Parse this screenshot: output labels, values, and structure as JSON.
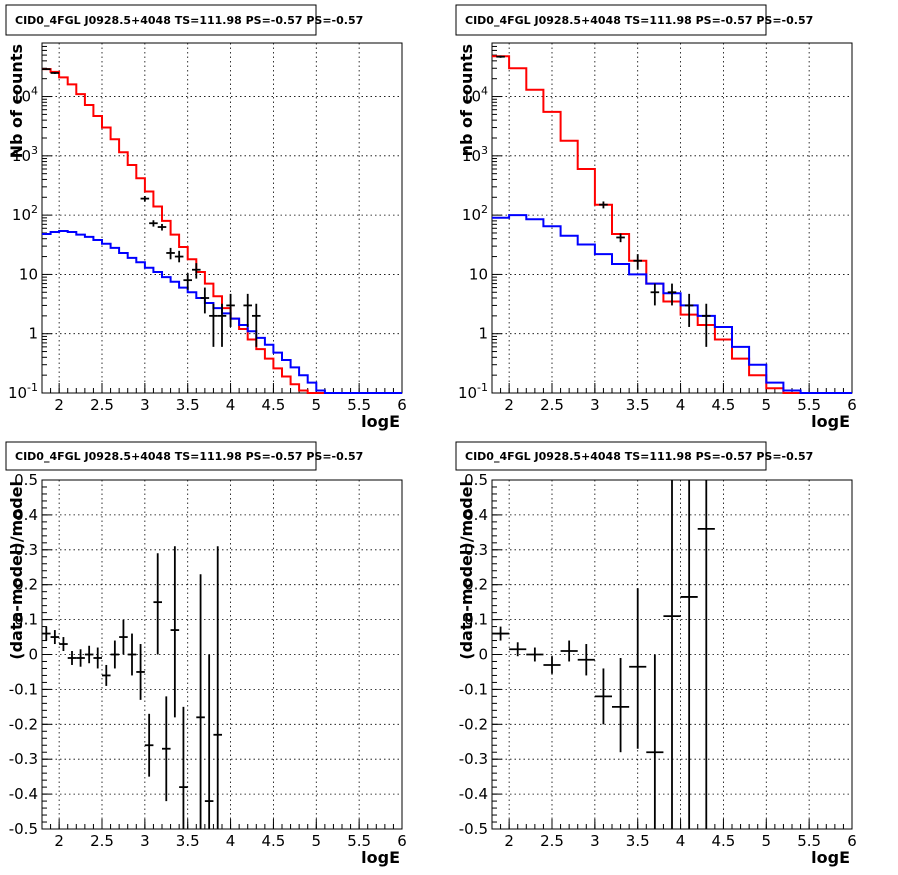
{
  "chart_data": [
    {
      "type": "step",
      "title": "CID0_4FGL J0928.5+4048 TS=111.98 PS=-0.57 PS=-0.57",
      "xlabel": "logE",
      "ylabel": "Nb of counts",
      "xlim": [
        1.8,
        6.0
      ],
      "ylim": [
        0.1,
        80000
      ],
      "log_y": true,
      "grid": true,
      "xticks": [
        "2",
        "2.5",
        "3",
        "3.5",
        "4",
        "4.5",
        "5",
        "5.5",
        "6"
      ],
      "yticks": [
        "10^-1",
        "1",
        "10",
        "10^2",
        "10^3",
        "10^4"
      ],
      "bin_edges": [
        1.8,
        1.9,
        2.0,
        2.1,
        2.2,
        2.3,
        2.4,
        2.5,
        2.6,
        2.7,
        2.8,
        2.9,
        3.0,
        3.1,
        3.2,
        3.3,
        3.4,
        3.5,
        3.6,
        3.7,
        3.8,
        3.9,
        4.0,
        4.1,
        4.2,
        4.3,
        4.4,
        4.5,
        4.6,
        4.7,
        4.8,
        4.9,
        5.0,
        5.1,
        5.2,
        5.3,
        5.4,
        5.5,
        5.6,
        5.7,
        5.8,
        5.9,
        6.0
      ],
      "series": [
        {
          "color": "#ff0000",
          "values": [
            29000,
            26000,
            21000,
            16000,
            11000,
            7200,
            4700,
            3000,
            1900,
            1150,
            700,
            420,
            250,
            140,
            80,
            47,
            29,
            18,
            11,
            7,
            4.3,
            2.7,
            1.8,
            1.2,
            0.8,
            0.55,
            0.38,
            0.26,
            0.19,
            0.14,
            0.11,
            0.1,
            0.1,
            0.1,
            0.1,
            0.1,
            0.1,
            0.1,
            0.1,
            0.1,
            0.1,
            0.1
          ]
        },
        {
          "color": "#0000ff",
          "values": [
            48,
            52,
            54,
            52,
            47,
            43,
            38,
            33,
            28,
            23,
            19,
            16,
            13,
            11,
            9,
            7.5,
            6,
            5,
            4,
            3.3,
            2.7,
            2.2,
            1.8,
            1.4,
            1.1,
            0.85,
            0.65,
            0.48,
            0.36,
            0.27,
            0.2,
            0.15,
            0.11,
            0.1,
            0.1,
            0.1,
            0.1,
            0.1,
            0.1,
            0.1,
            0.1,
            0.1
          ]
        }
      ],
      "points": [
        {
          "x": 1.85,
          "y": 29000,
          "lo": 28000,
          "hi": 30000
        },
        {
          "x": 1.95,
          "y": 25000,
          "lo": 24000,
          "hi": 26000
        },
        {
          "x": 3.0,
          "y": 190,
          "lo": 170,
          "hi": 210
        },
        {
          "x": 3.1,
          "y": 73,
          "lo": 64,
          "hi": 82
        },
        {
          "x": 3.2,
          "y": 63,
          "lo": 55,
          "hi": 71
        },
        {
          "x": 3.3,
          "y": 23,
          "lo": 18,
          "hi": 28
        },
        {
          "x": 3.4,
          "y": 20,
          "lo": 16,
          "hi": 25
        },
        {
          "x": 3.5,
          "y": 8,
          "lo": 5.5,
          "hi": 10.5
        },
        {
          "x": 3.6,
          "y": 12,
          "lo": 8.5,
          "hi": 15.5
        },
        {
          "x": 3.7,
          "y": 4,
          "lo": 2.2,
          "hi": 6
        },
        {
          "x": 3.8,
          "y": 2,
          "lo": 0.6,
          "hi": 3.2
        },
        {
          "x": 3.9,
          "y": 2,
          "lo": 0.6,
          "hi": 3.2
        },
        {
          "x": 4.0,
          "y": 3,
          "lo": 1.3,
          "hi": 4.7
        },
        {
          "x": 4.2,
          "y": 3,
          "lo": 1.3,
          "hi": 4.7
        },
        {
          "x": 4.3,
          "y": 2,
          "lo": 0.6,
          "hi": 3.2
        }
      ]
    },
    {
      "type": "step",
      "title": "CID0_4FGL J0928.5+4048 TS=111.98 PS=-0.57 PS=-0.57",
      "xlabel": "logE",
      "ylabel": "nb of counts",
      "xlim": [
        1.8,
        6.0
      ],
      "ylim": [
        0.1,
        80000
      ],
      "log_y": true,
      "grid": true,
      "xticks": [
        "2",
        "2.5",
        "3",
        "3.5",
        "4",
        "4.5",
        "5",
        "5.5",
        "6"
      ],
      "yticks": [
        "10^-1",
        "1",
        "10",
        "10^2",
        "10^3",
        "10^4"
      ],
      "bin_edges": [
        1.8,
        2.0,
        2.2,
        2.4,
        2.6,
        2.8,
        3.0,
        3.2,
        3.4,
        3.6,
        3.8,
        4.0,
        4.2,
        4.4,
        4.6,
        4.8,
        5.0,
        5.2,
        5.4,
        5.6,
        5.8,
        6.0
      ],
      "series": [
        {
          "color": "#ff0000",
          "values": [
            48000,
            30000,
            13000,
            5500,
            1800,
            600,
            150,
            48,
            17,
            7,
            3.5,
            2.1,
            1.4,
            0.8,
            0.38,
            0.2,
            0.12,
            0.1,
            0.1,
            0.1,
            0.1
          ]
        },
        {
          "color": "#0000ff",
          "values": [
            90,
            100,
            85,
            65,
            45,
            32,
            22,
            15,
            10,
            7,
            4.8,
            3,
            2,
            1.3,
            0.6,
            0.3,
            0.15,
            0.11,
            0.1,
            0.1,
            0.1
          ]
        }
      ],
      "points": [
        {
          "x": 1.9,
          "y": 47000,
          "lo": 45000,
          "hi": 49000
        },
        {
          "x": 3.1,
          "y": 150,
          "lo": 130,
          "hi": 170
        },
        {
          "x": 3.3,
          "y": 42,
          "lo": 35,
          "hi": 49
        },
        {
          "x": 3.5,
          "y": 17,
          "lo": 12,
          "hi": 22
        },
        {
          "x": 3.7,
          "y": 5,
          "lo": 3,
          "hi": 7
        },
        {
          "x": 3.9,
          "y": 5,
          "lo": 3,
          "hi": 7
        },
        {
          "x": 4.1,
          "y": 3,
          "lo": 1.3,
          "hi": 4.7
        },
        {
          "x": 4.3,
          "y": 2,
          "lo": 0.6,
          "hi": 3.2
        }
      ]
    },
    {
      "type": "scatter",
      "title": "CID0_4FGL J0928.5+4048 TS=111.98 PS=-0.57 PS=-0.57",
      "xlabel": "logE",
      "ylabel": "(data-model)/model",
      "xlim": [
        1.8,
        6.0
      ],
      "ylim": [
        -0.5,
        0.5
      ],
      "log_y": false,
      "grid": true,
      "xticks": [
        "2",
        "2.5",
        "3",
        "3.5",
        "4",
        "4.5",
        "5",
        "5.5",
        "6"
      ],
      "yticks": [
        "-0.5",
        "-0.4",
        "-0.3",
        "-0.2",
        "-0.1",
        "0",
        "0.1",
        "0.2",
        "0.3",
        "0.4",
        "0.5"
      ],
      "bin_halfwidth": 0.05,
      "points": [
        {
          "x": 1.85,
          "y": 0.06,
          "lo": 0.04,
          "hi": 0.08
        },
        {
          "x": 1.95,
          "y": 0.05,
          "lo": 0.03,
          "hi": 0.07
        },
        {
          "x": 2.05,
          "y": 0.03,
          "lo": 0.01,
          "hi": 0.05
        },
        {
          "x": 2.15,
          "y": -0.01,
          "lo": -0.03,
          "hi": 0.01
        },
        {
          "x": 2.25,
          "y": -0.01,
          "lo": -0.035,
          "hi": 0.015
        },
        {
          "x": 2.35,
          "y": 0.0,
          "lo": -0.025,
          "hi": 0.025
        },
        {
          "x": 2.45,
          "y": -0.01,
          "lo": -0.04,
          "hi": 0.02
        },
        {
          "x": 2.55,
          "y": -0.06,
          "lo": -0.09,
          "hi": -0.03
        },
        {
          "x": 2.65,
          "y": 0.0,
          "lo": -0.04,
          "hi": 0.04
        },
        {
          "x": 2.75,
          "y": 0.05,
          "lo": 0.0,
          "hi": 0.1
        },
        {
          "x": 2.85,
          "y": 0.0,
          "lo": -0.06,
          "hi": 0.06
        },
        {
          "x": 2.95,
          "y": -0.05,
          "lo": -0.13,
          "hi": 0.03
        },
        {
          "x": 3.05,
          "y": -0.26,
          "lo": -0.35,
          "hi": -0.17
        },
        {
          "x": 3.15,
          "y": 0.15,
          "lo": 0.0,
          "hi": 0.29
        },
        {
          "x": 3.25,
          "y": -0.27,
          "lo": -0.42,
          "hi": -0.12
        },
        {
          "x": 3.35,
          "y": 0.07,
          "lo": -0.18,
          "hi": 0.31
        },
        {
          "x": 3.45,
          "y": -0.38,
          "lo": -0.5,
          "hi": -0.15
        },
        {
          "x": 3.65,
          "y": -0.18,
          "lo": -0.5,
          "hi": 0.23
        },
        {
          "x": 3.75,
          "y": -0.42,
          "lo": -0.5,
          "hi": 0.0
        },
        {
          "x": 3.85,
          "y": -0.23,
          "lo": -0.5,
          "hi": 0.31
        }
      ]
    },
    {
      "type": "scatter",
      "title": "CID0_4FGL J0928.5+4048 TS=111.98 PS=-0.57 PS=-0.57",
      "xlabel": "logE",
      "ylabel": "(data-model)/model",
      "xlim": [
        1.8,
        6.0
      ],
      "ylim": [
        -0.5,
        0.5
      ],
      "log_y": false,
      "grid": true,
      "xticks": [
        "2",
        "2.5",
        "3",
        "3.5",
        "4",
        "4.5",
        "5",
        "5.5",
        "6"
      ],
      "yticks": [
        "-0.5",
        "-0.4",
        "-0.3",
        "-0.2",
        "-0.1",
        "0",
        "0.1",
        "0.2",
        "0.3",
        "0.4",
        "0.5"
      ],
      "bin_halfwidth": 0.1,
      "points": [
        {
          "x": 1.9,
          "y": 0.06,
          "lo": 0.04,
          "hi": 0.08
        },
        {
          "x": 2.1,
          "y": 0.015,
          "lo": -0.005,
          "hi": 0.035
        },
        {
          "x": 2.3,
          "y": 0.0,
          "lo": -0.02,
          "hi": 0.02
        },
        {
          "x": 2.5,
          "y": -0.03,
          "lo": -0.055,
          "hi": -0.005
        },
        {
          "x": 2.7,
          "y": 0.01,
          "lo": -0.02,
          "hi": 0.04
        },
        {
          "x": 2.9,
          "y": -0.015,
          "lo": -0.06,
          "hi": 0.03
        },
        {
          "x": 3.1,
          "y": -0.12,
          "lo": -0.2,
          "hi": -0.04
        },
        {
          "x": 3.3,
          "y": -0.15,
          "lo": -0.28,
          "hi": -0.01
        },
        {
          "x": 3.5,
          "y": -0.035,
          "lo": -0.27,
          "hi": 0.19
        },
        {
          "x": 3.7,
          "y": -0.28,
          "lo": -0.5,
          "hi": 0.0
        },
        {
          "x": 3.9,
          "y": 0.11,
          "lo": -0.5,
          "hi": 0.5
        },
        {
          "x": 4.1,
          "y": 0.165,
          "lo": -0.5,
          "hi": 0.5
        },
        {
          "x": 4.3,
          "y": 0.36,
          "lo": -0.5,
          "hi": 0.5
        }
      ]
    }
  ]
}
